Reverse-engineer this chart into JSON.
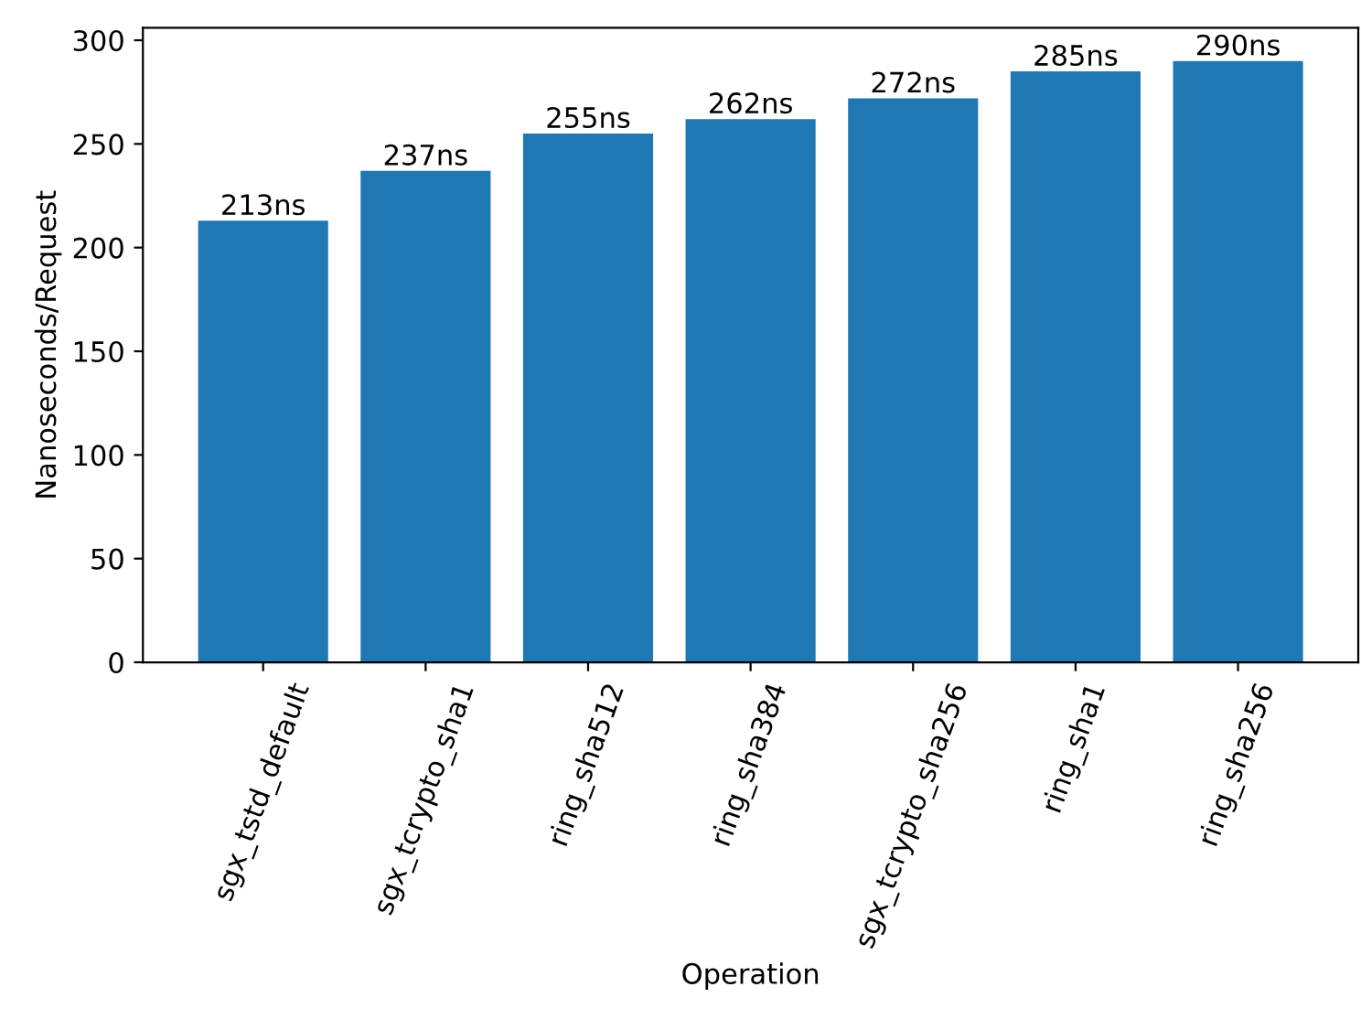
{
  "chart_data": {
    "type": "bar",
    "xlabel": "Operation",
    "ylabel": "Nanoseconds/Request",
    "categories": [
      "sgx_tstd_default",
      "sgx_tcrypto_sha1",
      "ring_sha512",
      "ring_sha384",
      "sgx_tcrypto_sha256",
      "ring_sha1",
      "ring_sha256"
    ],
    "values": [
      213,
      237,
      255,
      262,
      272,
      285,
      290
    ],
    "value_labels": [
      "213ns",
      "237ns",
      "255ns",
      "262ns",
      "272ns",
      "285ns",
      "290ns"
    ],
    "color": "#1f77b4",
    "ylim": [
      0,
      306
    ],
    "yticks": [
      0,
      50,
      100,
      150,
      200,
      250,
      300
    ],
    "grid": false,
    "legend": false
  }
}
